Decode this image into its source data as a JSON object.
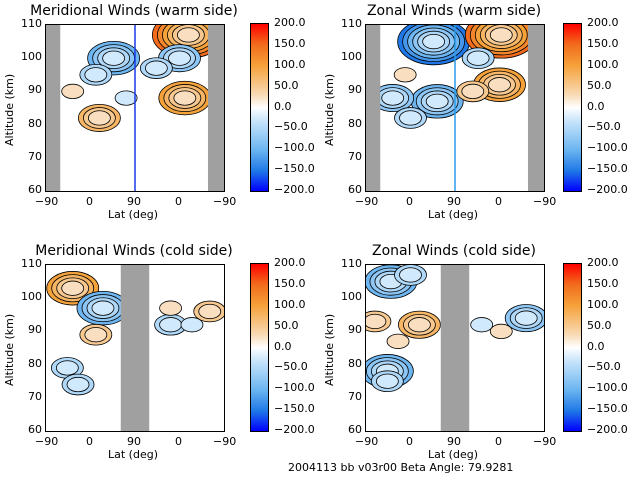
{
  "footer": {
    "text": "2004113 bb v03r00   Beta Angle: 79.9281"
  },
  "colorbar": {
    "ticks": [
      "200.0",
      "150.0",
      "100.0",
      "50.0",
      "0.0",
      "−50.0",
      "−100.0",
      "−150.0",
      "−200.0"
    ],
    "range": [
      -200,
      200
    ],
    "colors": {
      "max": "#ff0000",
      "positive": "#f5a23a",
      "zero": "#ffffff",
      "negative": "#6db6f1",
      "min": "#0000ff"
    }
  },
  "chart_data": [
    {
      "type": "heatmap",
      "title": "Meridional Winds (warm side)",
      "xlabel": "Lat (deg)",
      "ylabel": "Altitude (km)",
      "xticks": [
        "−90",
        "0",
        "90",
        "0",
        "−90"
      ],
      "yticks": [
        "110",
        "100",
        "90",
        "80",
        "70",
        "60"
      ],
      "ylim": [
        60,
        110
      ],
      "no_data_bands": [
        [
          0,
          0.08
        ],
        [
          0.91,
          1.0
        ]
      ],
      "divider": {
        "pos": 0.5,
        "color": "#1a3ae6"
      },
      "features": [
        {
          "x": 0.3,
          "alt": 82,
          "v": 70
        },
        {
          "x": 0.15,
          "alt": 90,
          "v": 30
        },
        {
          "x": 0.38,
          "alt": 100,
          "v": -90
        },
        {
          "x": 0.28,
          "alt": 95,
          "v": -40
        },
        {
          "x": 0.45,
          "alt": 88,
          "v": -30
        },
        {
          "x": 0.78,
          "alt": 88,
          "v": 90
        },
        {
          "x": 0.8,
          "alt": 107,
          "v": 140
        },
        {
          "x": 0.75,
          "alt": 100,
          "v": -70
        },
        {
          "x": 0.62,
          "alt": 97,
          "v": -40
        }
      ]
    },
    {
      "type": "heatmap",
      "title": "Zonal Winds (warm side)",
      "xlabel": "Lat (deg)",
      "ylabel": "Altitude (km)",
      "xticks": [
        "−90",
        "0",
        "90",
        "0",
        "−90"
      ],
      "yticks": [
        "110",
        "100",
        "90",
        "80",
        "70",
        "60"
      ],
      "ylim": [
        60,
        110
      ],
      "no_data_bands": [
        [
          0,
          0.08
        ],
        [
          0.91,
          1.0
        ]
      ],
      "divider": {
        "pos": 0.5,
        "color": "#2a9ae8"
      },
      "features": [
        {
          "x": 0.38,
          "alt": 105,
          "v": -150
        },
        {
          "x": 0.4,
          "alt": 87,
          "v": -110
        },
        {
          "x": 0.15,
          "alt": 88,
          "v": -80
        },
        {
          "x": 0.22,
          "alt": 95,
          "v": 20
        },
        {
          "x": 0.25,
          "alt": 82,
          "v": -40
        },
        {
          "x": 0.76,
          "alt": 107,
          "v": 150
        },
        {
          "x": 0.75,
          "alt": 92,
          "v": 90
        },
        {
          "x": 0.6,
          "alt": 90,
          "v": 40
        },
        {
          "x": 0.63,
          "alt": 100,
          "v": -40
        }
      ]
    },
    {
      "type": "heatmap",
      "title": "Meridional Winds (cold side)",
      "xlabel": "Lat (deg)",
      "ylabel": "Altitude (km)",
      "xticks": [
        "−90",
        "0",
        "90",
        "0",
        "−90"
      ],
      "yticks": [
        "110",
        "100",
        "90",
        "80",
        "70",
        "60"
      ],
      "ylim": [
        60,
        110
      ],
      "no_data_bands": [
        [
          0.42,
          0.58
        ]
      ],
      "features": [
        {
          "x": 0.15,
          "alt": 103,
          "v": 100
        },
        {
          "x": 0.28,
          "alt": 97,
          "v": 40
        },
        {
          "x": 0.32,
          "alt": 97,
          "v": -90
        },
        {
          "x": 0.28,
          "alt": 89,
          "v": 40
        },
        {
          "x": 0.12,
          "alt": 79,
          "v": -40
        },
        {
          "x": 0.18,
          "alt": 74,
          "v": -50
        },
        {
          "x": 0.7,
          "alt": 92,
          "v": -60
        },
        {
          "x": 0.7,
          "alt": 97,
          "v": 30
        },
        {
          "x": 0.92,
          "alt": 96,
          "v": 40
        },
        {
          "x": 0.82,
          "alt": 92,
          "v": -30
        }
      ]
    },
    {
      "type": "heatmap",
      "title": "Zonal Winds (cold side)",
      "xlabel": "Lat (deg)",
      "ylabel": "Altitude (km)",
      "xticks": [
        "−90",
        "0",
        "90",
        "0",
        "−90"
      ],
      "yticks": [
        "110",
        "100",
        "90",
        "80",
        "70",
        "60"
      ],
      "ylim": [
        60,
        110
      ],
      "no_data_bands": [
        [
          0.42,
          0.58
        ]
      ],
      "features": [
        {
          "x": 0.14,
          "alt": 105,
          "v": -110
        },
        {
          "x": 0.25,
          "alt": 107,
          "v": -40
        },
        {
          "x": 0.3,
          "alt": 92,
          "v": 70
        },
        {
          "x": 0.05,
          "alt": 93,
          "v": 50
        },
        {
          "x": 0.18,
          "alt": 87,
          "v": 30
        },
        {
          "x": 0.12,
          "alt": 78,
          "v": -100
        },
        {
          "x": 0.12,
          "alt": 75,
          "v": -40
        },
        {
          "x": 0.9,
          "alt": 94,
          "v": -80
        },
        {
          "x": 0.65,
          "alt": 92,
          "v": -30
        },
        {
          "x": 0.76,
          "alt": 90,
          "v": 30
        }
      ]
    }
  ]
}
